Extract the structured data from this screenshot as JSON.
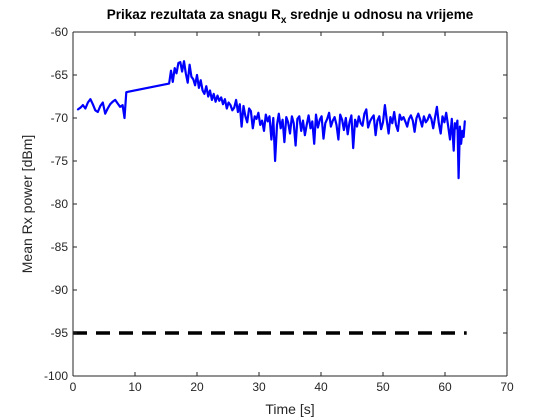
{
  "chart_data": {
    "type": "line",
    "title_main": "Prikaz rezultata za snagu R",
    "title_sub": "x",
    "title_rest": " srednje u odnosu na vrijeme",
    "xlabel": "Time [s]",
    "ylabel": "Mean Rx power [dBm]",
    "xlim": [
      0,
      70
    ],
    "ylim": [
      -100,
      -60
    ],
    "xticks": [
      0,
      10,
      20,
      30,
      40,
      50,
      60,
      70
    ],
    "yticks": [
      -100,
      -95,
      -90,
      -85,
      -80,
      -75,
      -70,
      -65,
      -60
    ],
    "grid": false,
    "colors": {
      "series": "#0000ff",
      "threshold": "#000000",
      "axes": "#262626"
    },
    "series": [
      {
        "style": "solid",
        "x": [
          0.8,
          1.2,
          1.6,
          2.0,
          2.4,
          2.8,
          3.2,
          3.6,
          4.0,
          4.4,
          4.8,
          5.2,
          5.6,
          6.0,
          6.4,
          6.8,
          7.2,
          7.6,
          8.0,
          8.3,
          8.6,
          15.5,
          15.8,
          16.1,
          16.4,
          16.7,
          17.0,
          17.3,
          17.6,
          17.9,
          18.2,
          18.5,
          18.8,
          19.1,
          19.4,
          19.7,
          20.0,
          20.3,
          20.6,
          20.9,
          21.2,
          21.5,
          21.8,
          22.1,
          22.4,
          22.7,
          23.0,
          23.3,
          23.6,
          23.9,
          24.2,
          24.5,
          24.8,
          25.1,
          25.4,
          25.7,
          26.0,
          26.3,
          26.6,
          26.9,
          27.2,
          27.5,
          27.8,
          28.1,
          28.4,
          28.7,
          29.0,
          29.3,
          29.6,
          29.9,
          30.2,
          30.5,
          30.8,
          31.1,
          31.4,
          31.7,
          32.0,
          32.3,
          32.6,
          32.9,
          33.2,
          33.5,
          33.8,
          34.1,
          34.4,
          34.7,
          35.0,
          35.3,
          35.6,
          35.9,
          36.2,
          36.5,
          36.8,
          37.1,
          37.4,
          37.7,
          38.0,
          38.3,
          38.6,
          38.9,
          39.2,
          39.5,
          39.8,
          40.1,
          40.4,
          40.7,
          41.0,
          41.3,
          41.6,
          41.9,
          42.2,
          42.5,
          42.8,
          43.1,
          43.4,
          43.7,
          44.0,
          44.3,
          44.6,
          44.9,
          45.2,
          45.5,
          45.8,
          46.1,
          46.4,
          46.7,
          47.0,
          47.3,
          47.6,
          47.9,
          48.2,
          48.5,
          48.8,
          49.1,
          49.4,
          49.7,
          50.0,
          50.3,
          50.6,
          50.9,
          51.2,
          51.5,
          51.8,
          52.1,
          52.4,
          52.7,
          53.0,
          53.3,
          53.6,
          53.9,
          54.2,
          54.5,
          54.8,
          55.1,
          55.4,
          55.7,
          56.0,
          56.3,
          56.6,
          56.9,
          57.2,
          57.5,
          57.8,
          58.1,
          58.4,
          58.7,
          59.0,
          59.3,
          59.6,
          59.9,
          60.2,
          60.5,
          60.8,
          61.1,
          61.4,
          61.6,
          61.8,
          62.0,
          62.2,
          62.4,
          62.6,
          62.8,
          63.0,
          63.2
        ],
        "y": [
          -69,
          -68.8,
          -68.5,
          -68.9,
          -68.2,
          -67.8,
          -68.4,
          -69.1,
          -69.3,
          -68.6,
          -68.2,
          -69.5,
          -68.9,
          -68.4,
          -68.1,
          -67.9,
          -68.3,
          -68.7,
          -68.5,
          -70,
          -67,
          -66,
          -64.5,
          -65.8,
          -64.2,
          -64.8,
          -63.6,
          -63.5,
          -64.6,
          -63.4,
          -64.8,
          -65.9,
          -63.8,
          -65.2,
          -65.5,
          -66.2,
          -65,
          -66.5,
          -65.6,
          -66.8,
          -67.2,
          -66.3,
          -67.5,
          -66.8,
          -67.9,
          -67.2,
          -68.1,
          -67.4,
          -68,
          -67.6,
          -68.4,
          -67.8,
          -68.9,
          -68.2,
          -68.5,
          -69.1,
          -68.8,
          -67.9,
          -69.3,
          -68.4,
          -71,
          -68.6,
          -69.8,
          -70.5,
          -68.9,
          -69.2,
          -71.2,
          -69.8,
          -70.1,
          -69.4,
          -70.8,
          -70.3,
          -71.5,
          -69.6,
          -70.4,
          -69.8,
          -72.5,
          -70,
          -75,
          -70.8,
          -69.5,
          -71.2,
          -70.2,
          -72.8,
          -69.9,
          -70.5,
          -71.8,
          -69.8,
          -70.6,
          -73.2,
          -70.1,
          -69.8,
          -71.5,
          -70.3,
          -72,
          -70.8,
          -69.7,
          -71.2,
          -70.4,
          -73,
          -69.6,
          -71.1,
          -70.2,
          -69.8,
          -72.4,
          -70.6,
          -70.1,
          -69.4,
          -71,
          -70.3,
          -69.9,
          -70.8,
          -72.5,
          -69.6,
          -70.2,
          -71.4,
          -70,
          -71.9,
          -70.5,
          -69.7,
          -73.5,
          -70.2,
          -71,
          -69.8,
          -70.6,
          -70.9,
          -69.5,
          -69,
          -71.1,
          -70.4,
          -70,
          -69.7,
          -72,
          -70.3,
          -69.8,
          -71.3,
          -70.5,
          -68.5,
          -70.2,
          -71.8,
          -69.9,
          -70.6,
          -69.3,
          -70.8,
          -71.5,
          -69.6,
          -70.2,
          -69.9,
          -70.4,
          -71,
          -70.1,
          -69.7,
          -70.3,
          -71.6,
          -70,
          -69.5,
          -70.2,
          -71,
          -69.8,
          -70.5,
          -70.2,
          -69.6,
          -70.1,
          -71.2,
          -69.9,
          -68.7,
          -70.6,
          -71.8,
          -69.8,
          -70.5,
          -69.4,
          -70.9,
          -72.5,
          -70.1,
          -73.8,
          -70.6,
          -71.2,
          -70.3,
          -77,
          -71,
          -73,
          -71.5,
          -72.2,
          -70.4
        ]
      },
      {
        "style": "dashed",
        "x": [
          0,
          63.5
        ],
        "y": [
          -95,
          -95
        ]
      }
    ]
  }
}
